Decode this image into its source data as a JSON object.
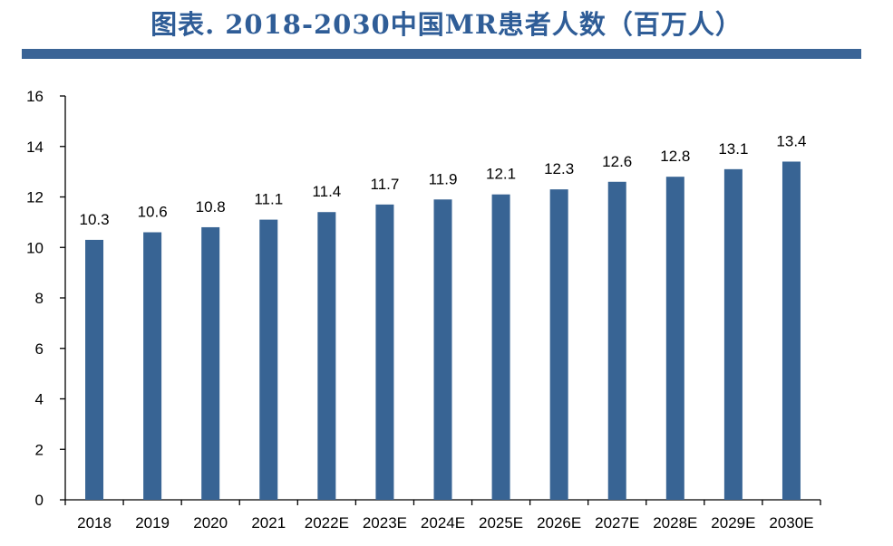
{
  "page": {
    "title": "图表. 2018-2030中国MR患者人数（百万人）"
  },
  "chart_data": {
    "type": "bar",
    "title": "图表. 2018-2030中国MR患者人数（百万人）",
    "xlabel": "",
    "ylabel": "",
    "ylim": [
      0,
      16
    ],
    "yticks": [
      0,
      2,
      4,
      6,
      8,
      10,
      12,
      14,
      16
    ],
    "categories": [
      "2018",
      "2019",
      "2020",
      "2021",
      "2022E",
      "2023E",
      "2024E",
      "2025E",
      "2026E",
      "2027E",
      "2028E",
      "2029E",
      "2030E"
    ],
    "values": [
      10.3,
      10.6,
      10.8,
      11.1,
      11.4,
      11.7,
      11.9,
      12.1,
      12.3,
      12.6,
      12.8,
      13.1,
      13.4
    ],
    "value_labels": [
      "10.3",
      "10.6",
      "10.8",
      "11.1",
      "11.4",
      "11.7",
      "11.9",
      "12.1",
      "12.3",
      "12.6",
      "12.8",
      "13.1",
      "13.4"
    ],
    "bar_color": "#386494",
    "grid": false,
    "legend": "none"
  }
}
